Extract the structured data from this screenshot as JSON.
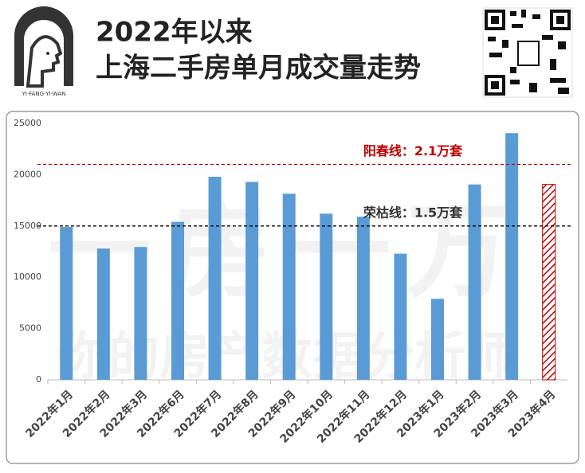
{
  "header": {
    "title_line1": "2022年以来",
    "title_line2": "上海二手房单月成交量走势",
    "logo_text": "YI·FANG·YI·WAN"
  },
  "chart_data": {
    "type": "bar",
    "watermark": [
      "一房一万",
      "你的房产数据分析师"
    ],
    "categories": [
      "2022年1月",
      "2022年2月",
      "2022年3月",
      "2022年6月",
      "2022年7月",
      "2022年8月",
      "2022年9月",
      "2022年10月",
      "2022年11月",
      "2022年12月",
      "2023年1月",
      "2023年2月",
      "2023年3月",
      "2023年4月"
    ],
    "values": [
      14900,
      12800,
      12950,
      15400,
      19800,
      19300,
      18150,
      16200,
      15900,
      12300,
      7900,
      19050,
      24050,
      19050
    ],
    "color": "#5b9bd5",
    "bar_styles": [
      "solid",
      "solid",
      "solid",
      "solid",
      "solid",
      "solid",
      "solid",
      "solid",
      "solid",
      "solid",
      "solid",
      "solid",
      "solid",
      "hatched"
    ],
    "hatch_color": "#c00000",
    "reference_lines": [
      {
        "value": 21000,
        "label": "阳春线：2.1万套",
        "color": "#c00000"
      },
      {
        "value": 15000,
        "label": "荣枯线：1.5万套",
        "color": "#000000"
      }
    ],
    "ylim": [
      0,
      25000
    ],
    "yticks": [
      0,
      5000,
      10000,
      15000,
      20000,
      25000
    ],
    "grid": false
  }
}
